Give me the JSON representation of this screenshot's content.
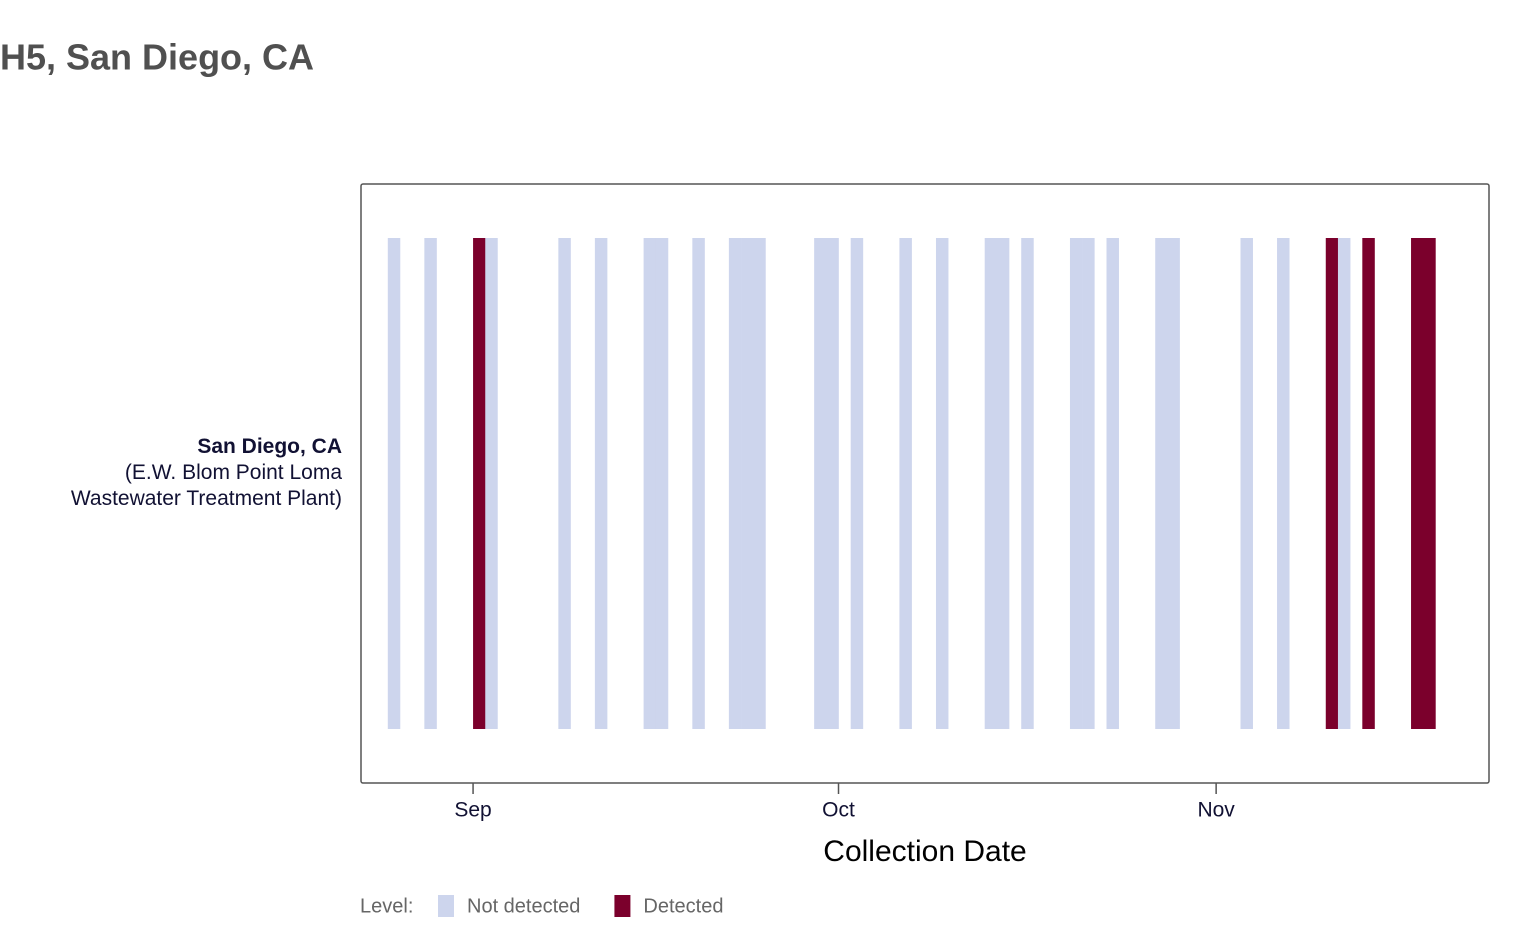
{
  "chart_data": {
    "type": "tile",
    "title": "H5, San Diego, CA",
    "y_category": {
      "name": "San Diego, CA",
      "detail": "(E.W. Blom Point Loma Wastewater Treatment Plant)"
    },
    "x_label": "Collection Date",
    "xlim": [
      -9.2,
      83.4
    ],
    "xticks": [
      {
        "value": 0,
        "label": "Sep"
      },
      {
        "value": 30,
        "label": "Oct"
      },
      {
        "value": 61,
        "label": "Nov"
      }
    ],
    "x": [
      -7,
      -4,
      0,
      1,
      7,
      10,
      14,
      15,
      18,
      21,
      22,
      23,
      28,
      29,
      31,
      35,
      38,
      42,
      43,
      45,
      49,
      50,
      52,
      56,
      57,
      63,
      66,
      70,
      71,
      73,
      77,
      78
    ],
    "values": [
      "Not detected",
      "Not detected",
      "Detected",
      "Not detected",
      "Not detected",
      "Not detected",
      "Not detected",
      "Not detected",
      "Not detected",
      "Not detected",
      "Not detected",
      "Not detected",
      "Not detected",
      "Not detected",
      "Not detected",
      "Not detected",
      "Not detected",
      "Not detected",
      "Not detected",
      "Not detected",
      "Not detected",
      "Not detected",
      "Not detected",
      "Not detected",
      "Not detected",
      "Not detected",
      "Not detected",
      "Detected",
      "Not detected",
      "Detected",
      "Detected",
      "Detected"
    ],
    "legend_title": "Level:",
    "levels": [
      {
        "name": "Not detected",
        "color": "#cdd5ed"
      },
      {
        "name": "Detected",
        "color": "#7b002c"
      }
    ]
  }
}
